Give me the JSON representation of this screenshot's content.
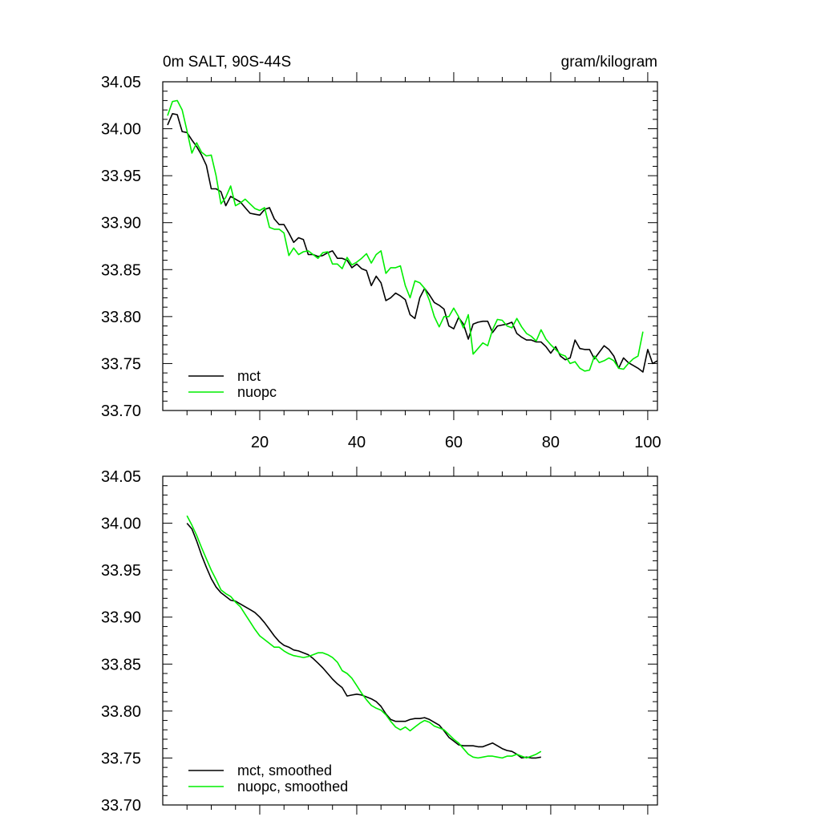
{
  "chart_data": [
    {
      "type": "line",
      "title": "0m SALT, 90S-44S",
      "units": "gram/kilogram",
      "xlabel": "",
      "ylabel": "",
      "xlim": [
        0,
        102
      ],
      "ylim": [
        33.7,
        34.05
      ],
      "xticks": [
        20,
        40,
        60,
        80,
        100
      ],
      "xtick_labels": [
        "20",
        "40",
        "60",
        "80",
        "100"
      ],
      "yticks": [
        33.7,
        33.75,
        33.8,
        33.85,
        33.9,
        33.95,
        34.0,
        34.05
      ],
      "ytick_labels": [
        "33.70",
        "33.75",
        "33.80",
        "33.85",
        "33.90",
        "33.95",
        "34.00",
        "34.05"
      ],
      "legend_position": "bottom-left",
      "series": [
        {
          "name": "mct",
          "color": "#000000",
          "x_start": 1,
          "values": [
            34.004,
            34.016,
            34.015,
            33.997,
            33.996,
            33.988,
            33.981,
            33.972,
            33.961,
            33.936,
            33.936,
            33.933,
            33.918,
            33.928,
            33.925,
            33.922,
            33.916,
            33.91,
            33.909,
            33.908,
            33.914,
            33.916,
            33.904,
            33.898,
            33.898,
            33.889,
            33.879,
            33.884,
            33.882,
            33.866,
            33.866,
            33.864,
            33.865,
            33.868,
            33.87,
            33.862,
            33.862,
            33.86,
            33.852,
            33.856,
            33.851,
            33.849,
            33.833,
            33.843,
            33.836,
            33.817,
            33.82,
            33.825,
            33.822,
            33.818,
            33.802,
            33.798,
            33.82,
            33.83,
            33.823,
            33.815,
            33.812,
            33.808,
            33.79,
            33.787,
            33.799,
            33.792,
            33.776,
            33.792,
            33.794,
            33.795,
            33.795,
            33.783,
            33.79,
            33.791,
            33.792,
            33.794,
            33.782,
            33.778,
            33.775,
            33.775,
            33.773,
            33.773,
            33.768,
            33.761,
            33.768,
            33.758,
            33.754,
            33.756,
            33.775,
            33.766,
            33.765,
            33.765,
            33.755,
            33.762,
            33.769,
            33.765,
            33.758,
            33.745,
            33.756,
            33.751,
            33.748,
            33.745,
            33.741,
            33.765,
            33.75,
            33.753
          ]
        },
        {
          "name": "nuopc",
          "color": "#00ee00",
          "x_start": 1,
          "values": [
            34.014,
            34.029,
            34.03,
            34.02,
            33.998,
            33.974,
            33.985,
            33.975,
            33.971,
            33.972,
            33.95,
            33.92,
            33.927,
            33.939,
            33.918,
            33.921,
            33.925,
            33.92,
            33.915,
            33.913,
            33.916,
            33.895,
            33.893,
            33.893,
            33.889,
            33.865,
            33.873,
            33.866,
            33.869,
            33.87,
            33.866,
            33.862,
            33.868,
            33.869,
            33.856,
            33.856,
            33.851,
            33.863,
            33.855,
            33.858,
            33.862,
            33.867,
            33.857,
            33.866,
            33.87,
            33.846,
            33.852,
            33.852,
            33.854,
            33.833,
            33.82,
            33.838,
            33.836,
            33.83,
            33.817,
            33.8,
            33.789,
            33.8,
            33.8,
            33.809,
            33.8,
            33.788,
            33.802,
            33.76,
            33.766,
            33.772,
            33.769,
            33.786,
            33.797,
            33.796,
            33.79,
            33.788,
            33.798,
            33.789,
            33.782,
            33.779,
            33.774,
            33.786,
            33.776,
            33.77,
            33.765,
            33.76,
            33.758,
            33.75,
            33.752,
            33.745,
            33.742,
            33.743,
            33.758,
            33.751,
            33.753,
            33.756,
            33.753,
            33.745,
            33.744,
            33.75,
            33.755,
            33.758,
            33.784
          ]
        }
      ]
    },
    {
      "type": "line",
      "title": "",
      "xlabel": "",
      "ylabel": "",
      "xlim": [
        0,
        102
      ],
      "ylim": [
        33.7,
        34.05
      ],
      "xticks": [
        20,
        40,
        60,
        80,
        100
      ],
      "yticks": [
        33.7,
        33.75,
        33.8,
        33.85,
        33.9,
        33.95,
        34.0,
        34.05
      ],
      "ytick_labels": [
        "33.70",
        "33.75",
        "33.80",
        "33.85",
        "33.90",
        "33.95",
        "34.00",
        "34.05"
      ],
      "legend_position": "bottom-left",
      "series": [
        {
          "name": "mct, smoothed",
          "color": "#000000",
          "x_start": 5,
          "values": [
            34.0,
            33.994,
            33.981,
            33.966,
            33.953,
            33.941,
            33.932,
            33.926,
            33.922,
            33.918,
            33.917,
            33.914,
            33.911,
            33.908,
            33.905,
            33.9,
            33.894,
            33.887,
            33.88,
            33.874,
            33.87,
            33.868,
            33.865,
            33.864,
            33.862,
            33.86,
            33.856,
            33.851,
            33.846,
            33.84,
            33.834,
            33.829,
            33.825,
            33.816,
            33.817,
            33.818,
            33.817,
            33.815,
            33.813,
            33.81,
            33.805,
            33.797,
            33.791,
            33.789,
            33.789,
            33.789,
            33.791,
            33.792,
            33.792,
            33.793,
            33.791,
            33.788,
            33.785,
            33.779,
            33.772,
            33.768,
            33.764,
            33.763,
            33.763,
            33.763,
            33.762,
            33.762,
            33.764,
            33.766,
            33.763,
            33.76,
            33.758,
            33.757,
            33.754,
            33.75,
            33.751,
            33.75,
            33.75,
            33.751
          ]
        },
        {
          "name": "nuopc, smoothed",
          "color": "#00ee00",
          "x_start": 5,
          "values": [
            34.008,
            33.998,
            33.987,
            33.974,
            33.962,
            33.95,
            33.94,
            33.929,
            33.925,
            33.922,
            33.916,
            33.911,
            33.903,
            33.895,
            33.887,
            33.88,
            33.876,
            33.872,
            33.868,
            33.868,
            33.864,
            33.861,
            33.859,
            33.858,
            33.857,
            33.858,
            33.86,
            33.862,
            33.862,
            33.86,
            33.857,
            33.852,
            33.843,
            33.84,
            33.835,
            33.827,
            33.819,
            33.812,
            33.806,
            33.803,
            33.801,
            33.796,
            33.789,
            33.783,
            33.78,
            33.783,
            33.779,
            33.783,
            33.787,
            33.79,
            33.788,
            33.784,
            33.782,
            33.78,
            33.775,
            33.77,
            33.766,
            33.76,
            33.754,
            33.751,
            33.75,
            33.751,
            33.752,
            33.752,
            33.751,
            33.75,
            33.752,
            33.752,
            33.754,
            33.752,
            33.75,
            33.752,
            33.754,
            33.757
          ]
        }
      ]
    }
  ]
}
